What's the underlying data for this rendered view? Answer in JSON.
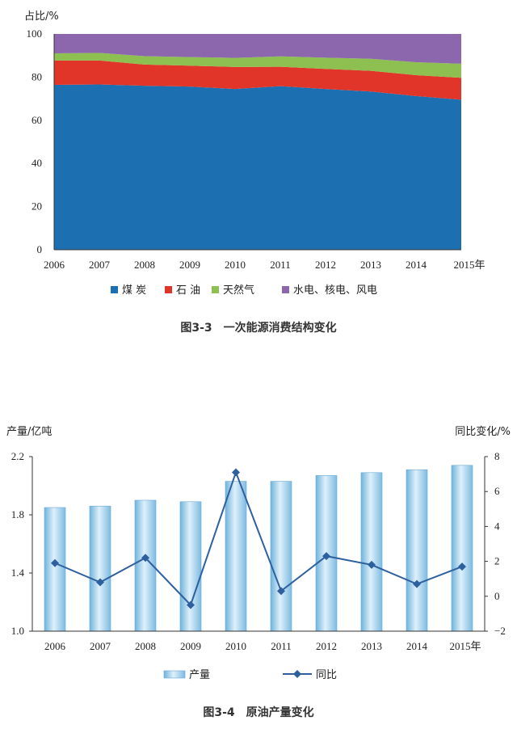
{
  "chart_data": [
    {
      "type": "area",
      "stacked": true,
      "caption": "图3-3　一次能源消费结构变化",
      "ylabel": "占比/%",
      "xlabel": "",
      "x": [
        "2006",
        "2007",
        "2008",
        "2009",
        "2010",
        "2011",
        "2012",
        "2013",
        "2014",
        "2015年"
      ],
      "ylim": [
        0,
        100
      ],
      "yticks": [
        "0",
        "20",
        "40",
        "60",
        "80",
        "100"
      ],
      "grid": false,
      "legend": "bottom",
      "series": [
        {
          "name": "煤 炭",
          "color": "#1c6fb1",
          "values": [
            76.4,
            76.6,
            76.0,
            75.6,
            74.5,
            75.8,
            74.5,
            73.3,
            71.2,
            69.5
          ]
        },
        {
          "name": "石 油",
          "color": "#e1352a",
          "values": [
            11.3,
            11.1,
            9.8,
            9.7,
            10.2,
            9.0,
            9.3,
            9.6,
            9.7,
            10.2
          ]
        },
        {
          "name": "天然气",
          "color": "#8dc050",
          "values": [
            3.3,
            3.5,
            3.9,
            4.0,
            4.2,
            4.8,
            5.2,
            5.6,
            6.0,
            6.5
          ]
        },
        {
          "name": "水电、核电、风电",
          "color": "#8d67ad",
          "values": [
            9.0,
            8.8,
            10.3,
            10.7,
            11.1,
            10.4,
            11.0,
            11.5,
            13.1,
            13.8
          ]
        }
      ]
    },
    {
      "type": "bar",
      "combo": true,
      "caption": "图3-4　原油产量变化",
      "ylabel": "产量/亿吨",
      "y2label": "同比变化/%",
      "x": [
        "2006",
        "2007",
        "2008",
        "2009",
        "2010",
        "2011",
        "2012",
        "2013",
        "2014",
        "2015年"
      ],
      "ylim": [
        1.0,
        2.2
      ],
      "yticks": [
        "1.0",
        "1.4",
        "1.8",
        "2.2"
      ],
      "y2lim": [
        -2,
        8
      ],
      "y2ticks": [
        "−2",
        "0",
        "2",
        "4",
        "6",
        "8"
      ],
      "legend": "bottom",
      "series": [
        {
          "name": "产量",
          "kind": "bar",
          "color": "#a9d6ee",
          "values": [
            1.85,
            1.86,
            1.9,
            1.89,
            2.03,
            2.03,
            2.07,
            2.09,
            2.11,
            2.14
          ]
        },
        {
          "name": "同比",
          "kind": "line",
          "axis": "right",
          "color": "#2e5f9e",
          "values": [
            1.9,
            0.8,
            2.2,
            -0.5,
            7.1,
            0.3,
            2.3,
            1.8,
            0.7,
            1.7
          ]
        }
      ]
    }
  ]
}
